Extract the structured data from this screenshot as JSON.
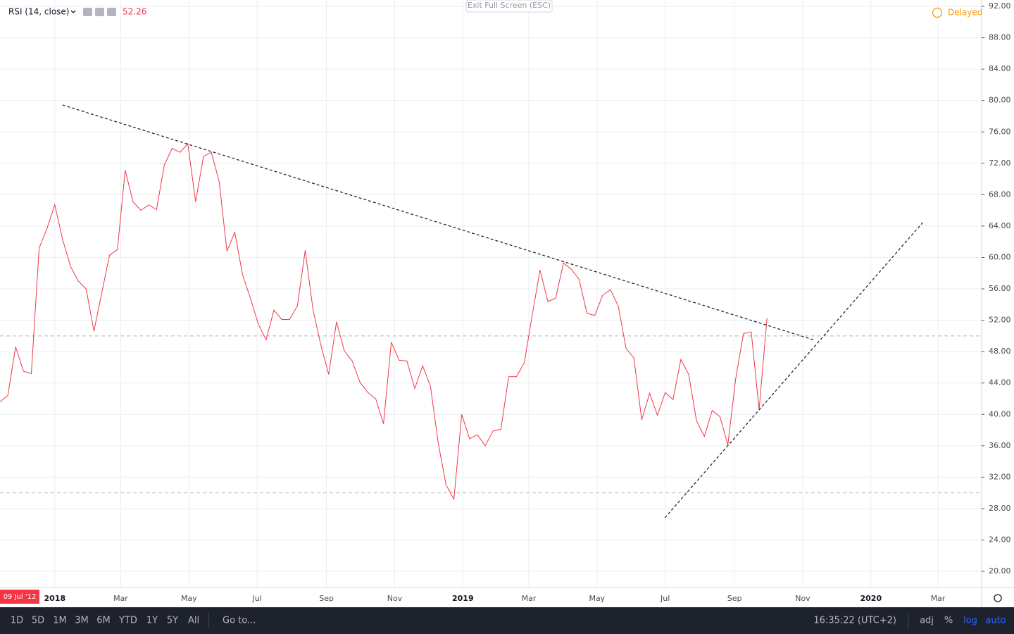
{
  "chart_data": {
    "type": "line",
    "title": "RSI (14, close)",
    "color": "#f23645",
    "x": [
      -49,
      -42,
      -35,
      -28,
      -21,
      -14,
      -7,
      0,
      7,
      14,
      21,
      28,
      35,
      42,
      49,
      56,
      63,
      70,
      77,
      84,
      91,
      98,
      105,
      112,
      119,
      126,
      133,
      140,
      147,
      154,
      161,
      168,
      175,
      182,
      189,
      196,
      203,
      210,
      217,
      224,
      231,
      238,
      245,
      252,
      259,
      266,
      273,
      280,
      287,
      294,
      301,
      308,
      315,
      322,
      329,
      336,
      343,
      350,
      357,
      364,
      371,
      378,
      385,
      392,
      399,
      406,
      413,
      420,
      427,
      434,
      441,
      448,
      455,
      462,
      469,
      476,
      483,
      490,
      497,
      504,
      511,
      518,
      525,
      532,
      539,
      546,
      553,
      560,
      567,
      574,
      581,
      588,
      595,
      602,
      609,
      616,
      623,
      630,
      637
    ],
    "values": [
      41.6,
      42.4,
      48.6,
      45.5,
      45.2,
      61.2,
      63.7,
      66.7,
      62.3,
      58.9,
      57.0,
      56.0,
      50.6,
      55.5,
      60.3,
      61.0,
      71.1,
      67.1,
      66.0,
      66.7,
      66.1,
      71.8,
      73.9,
      73.4,
      74.5,
      67.1,
      72.9,
      73.4,
      69.7,
      60.8,
      63.2,
      57.8,
      54.8,
      51.5,
      49.5,
      53.3,
      52.1,
      52.1,
      53.8,
      60.9,
      53.3,
      48.8,
      45.1,
      51.8,
      48.1,
      46.8,
      44.1,
      42.8,
      42.0,
      38.8,
      49.2,
      46.9,
      46.8,
      43.3,
      46.2,
      43.6,
      36.3,
      31.0,
      29.2,
      40.0,
      36.9,
      37.4,
      36.0,
      37.9,
      38.1,
      44.8,
      44.8,
      46.6,
      52.6,
      58.4,
      54.4,
      54.8,
      59.3,
      58.5,
      57.2,
      52.9,
      52.6,
      55.2,
      55.9,
      53.8,
      48.4,
      47.2,
      39.3,
      42.7,
      39.9,
      42.8,
      41.9,
      47.0,
      45.1,
      39.2,
      37.2,
      40.5,
      39.7,
      36.1,
      44.5,
      50.3,
      50.5,
      40.6,
      52.26
    ],
    "xlim": [
      -49,
      829
    ],
    "ylim": [
      17.94,
      92.81
    ],
    "xticks": [
      {
        "value": 0,
        "label": "2018"
      },
      {
        "value": 59,
        "label": "Mar"
      },
      {
        "value": 120,
        "label": "May"
      },
      {
        "value": 181,
        "label": "Jul"
      },
      {
        "value": 243,
        "label": "Sep"
      },
      {
        "value": 304,
        "label": "Nov"
      },
      {
        "value": 365,
        "label": "2019"
      },
      {
        "value": 424,
        "label": "Mar"
      },
      {
        "value": 485,
        "label": "May"
      },
      {
        "value": 546,
        "label": "Jul"
      },
      {
        "value": 608,
        "label": "Sep"
      },
      {
        "value": 669,
        "label": "Nov"
      },
      {
        "value": 730,
        "label": "2020"
      },
      {
        "value": 790,
        "label": "Mar"
      }
    ],
    "yticks": [
      {
        "value": 20,
        "label": "20.00"
      },
      {
        "value": 24,
        "label": "24.00"
      },
      {
        "value": 28,
        "label": "28.00"
      },
      {
        "value": 32,
        "label": "32.00"
      },
      {
        "value": 36,
        "label": "36.00"
      },
      {
        "value": 40,
        "label": "40.00"
      },
      {
        "value": 44,
        "label": "44.00"
      },
      {
        "value": 48,
        "label": "48.00"
      },
      {
        "value": 52,
        "label": "52.00"
      },
      {
        "value": 56,
        "label": "56.00"
      },
      {
        "value": 60,
        "label": "60.00"
      },
      {
        "value": 64,
        "label": "64.00"
      },
      {
        "value": 68,
        "label": "68.00"
      },
      {
        "value": 72,
        "label": "72.00"
      },
      {
        "value": 76,
        "label": "76.00"
      },
      {
        "value": 80,
        "label": "80.00"
      },
      {
        "value": 84,
        "label": "84.00"
      },
      {
        "value": 88,
        "label": "88.00"
      },
      {
        "value": 92,
        "label": "92.00"
      }
    ],
    "levels": [
      50,
      30
    ],
    "grid": true,
    "trendlines": [
      {
        "x": [
          6.9,
          679.9
        ],
        "y": [
          79.43,
          49.45
        ]
      },
      {
        "x": [
          545.7,
          776.3
        ],
        "y": [
          26.83,
          64.44
        ]
      }
    ],
    "crosshair_date": "09 Jul '12"
  },
  "ui": {
    "exit_button": "Exit Full Screen (ESC)",
    "status": "Delayed",
    "ranges": [
      "1D",
      "5D",
      "1M",
      "3M",
      "6M",
      "YTD",
      "1Y",
      "5Y",
      "All"
    ],
    "goto": "Go to...",
    "clock": "16:35:22 (UTC+2)",
    "options": [
      "adj",
      "%",
      "log",
      "auto"
    ]
  }
}
